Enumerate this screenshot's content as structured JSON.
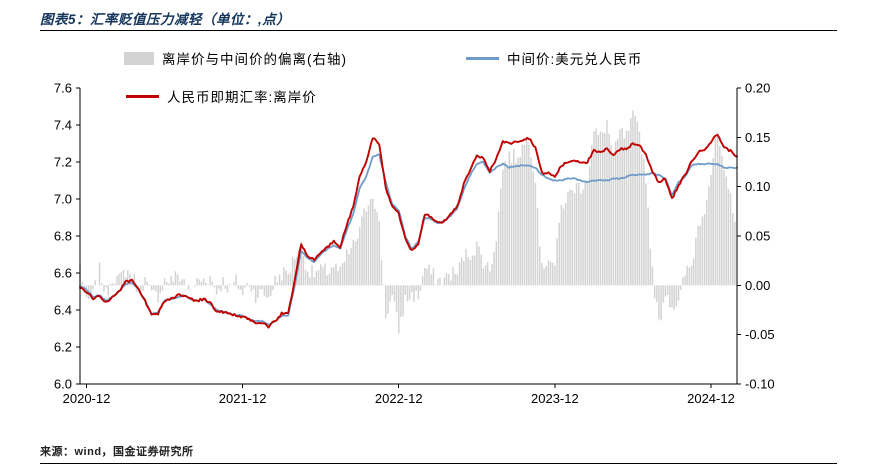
{
  "page": {
    "source": "来源：wind，国金证券研究所"
  },
  "chart_data": {
    "type": "line+bar",
    "title": "图表5：汇率贬值压力减轻（单位：,点）",
    "x_range": "2020-12 to 2025-02",
    "points_per_month": 2,
    "x_ticks": [
      "2020-12",
      "2021-12",
      "2022-12",
      "2023-12",
      "2024-12"
    ],
    "x_tick_months": [
      0,
      12,
      24,
      36,
      48
    ],
    "y_left": {
      "min": 6.0,
      "max": 7.6,
      "ticks": [
        "7.6",
        "7.4",
        "7.2",
        "7.0",
        "6.8",
        "6.6",
        "6.4",
        "6.2",
        "6.0"
      ]
    },
    "y_right": {
      "min": -0.1,
      "max": 0.2,
      "ticks": [
        "0.20",
        "0.15",
        "0.10",
        "0.05",
        "0.00",
        "-0.05",
        "-0.10"
      ]
    },
    "legend_position": "top",
    "grid": false,
    "series": [
      {
        "name": "离岸价与中间价的偏离(右轴)",
        "type": "bar",
        "axis": "right",
        "color": "#d3d3d3",
        "values": [
          0.02,
          -0.02,
          -0.01,
          0.015,
          -0.01,
          0.01,
          0.005,
          0.015,
          0.01,
          -0.005,
          0.005,
          -0.01,
          -0.01,
          0.005,
          0.005,
          0.01,
          0.005,
          -0.005,
          0.004,
          0.006,
          0.008,
          -0.006,
          0.004,
          -0.004,
          0.004,
          -0.008,
          0.003,
          -0.01,
          -0.008,
          -0.012,
          0.004,
          0.012,
          0.012,
          0.03,
          0.04,
          0.015,
          0.012,
          0.015,
          0.014,
          0.02,
          0.012,
          0.03,
          0.04,
          0.055,
          0.08,
          0.095,
          0.06,
          -0.03,
          -0.012,
          -0.045,
          -0.015,
          -0.01,
          -0.012,
          0.018,
          0.012,
          0.005,
          0.006,
          0.012,
          0.012,
          0.03,
          0.032,
          0.04,
          0.025,
          0.015,
          0.05,
          0.12,
          0.13,
          0.13,
          0.14,
          0.15,
          0.11,
          0.015,
          0.03,
          0.02,
          0.08,
          0.09,
          0.1,
          0.1,
          0.11,
          0.155,
          0.15,
          0.165,
          0.13,
          0.155,
          0.15,
          0.17,
          0.155,
          0.11,
          0.012,
          -0.04,
          -0.005,
          -0.02,
          -0.02,
          0.012,
          0.02,
          0.06,
          0.08,
          0.115,
          0.155,
          0.11,
          0.09,
          0.06
        ]
      },
      {
        "name": "中间价:美元兑人民币",
        "type": "line",
        "axis": "left",
        "color": "#6f9bc9",
        "values": [
          6.53,
          6.51,
          6.47,
          6.48,
          6.45,
          6.47,
          6.5,
          6.54,
          6.55,
          6.51,
          6.45,
          6.38,
          6.39,
          6.45,
          6.46,
          6.47,
          6.48,
          6.46,
          6.45,
          6.46,
          6.43,
          6.4,
          6.39,
          6.38,
          6.37,
          6.37,
          6.35,
          6.34,
          6.34,
          6.32,
          6.34,
          6.37,
          6.37,
          6.53,
          6.72,
          6.68,
          6.66,
          6.7,
          6.73,
          6.75,
          6.73,
          6.83,
          6.92,
          7.06,
          7.12,
          7.23,
          7.24,
          7.09,
          6.97,
          6.94,
          6.8,
          6.73,
          6.77,
          6.9,
          6.89,
          6.87,
          6.88,
          6.91,
          6.95,
          7.05,
          7.13,
          7.19,
          7.2,
          7.14,
          7.17,
          7.19,
          7.17,
          7.18,
          7.18,
          7.18,
          7.17,
          7.13,
          7.11,
          7.1,
          7.1,
          7.11,
          7.11,
          7.1,
          7.09,
          7.1,
          7.1,
          7.1,
          7.11,
          7.11,
          7.12,
          7.13,
          7.13,
          7.13,
          7.14,
          7.13,
          7.11,
          7.02,
          7.09,
          7.12,
          7.18,
          7.19,
          7.19,
          7.19,
          7.19,
          7.17,
          7.17,
          7.17
        ]
      },
      {
        "name": "人民币即期汇率:离岸价",
        "type": "line",
        "axis": "left",
        "color": "#c00000",
        "values": [
          6.52,
          6.5,
          6.46,
          6.48,
          6.44,
          6.47,
          6.5,
          6.55,
          6.56,
          6.51,
          6.45,
          6.37,
          6.38,
          6.45,
          6.46,
          6.48,
          6.48,
          6.46,
          6.45,
          6.46,
          6.44,
          6.39,
          6.39,
          6.38,
          6.37,
          6.36,
          6.35,
          6.33,
          6.33,
          6.31,
          6.34,
          6.38,
          6.38,
          6.56,
          6.76,
          6.69,
          6.67,
          6.71,
          6.74,
          6.77,
          6.74,
          6.86,
          6.96,
          7.12,
          7.2,
          7.33,
          7.3,
          7.06,
          6.96,
          6.92,
          6.79,
          6.72,
          6.76,
          6.92,
          6.9,
          6.87,
          6.88,
          6.92,
          6.96,
          7.08,
          7.16,
          7.23,
          7.22,
          7.15,
          7.22,
          7.31,
          7.3,
          7.31,
          7.32,
          7.33,
          7.28,
          7.14,
          7.14,
          7.12,
          7.18,
          7.2,
          7.21,
          7.2,
          7.2,
          7.26,
          7.25,
          7.27,
          7.24,
          7.27,
          7.27,
          7.3,
          7.29,
          7.24,
          7.15,
          7.09,
          7.11,
          7.0,
          7.07,
          7.13,
          7.2,
          7.25,
          7.27,
          7.31,
          7.35,
          7.28,
          7.26,
          7.23
        ]
      }
    ]
  }
}
